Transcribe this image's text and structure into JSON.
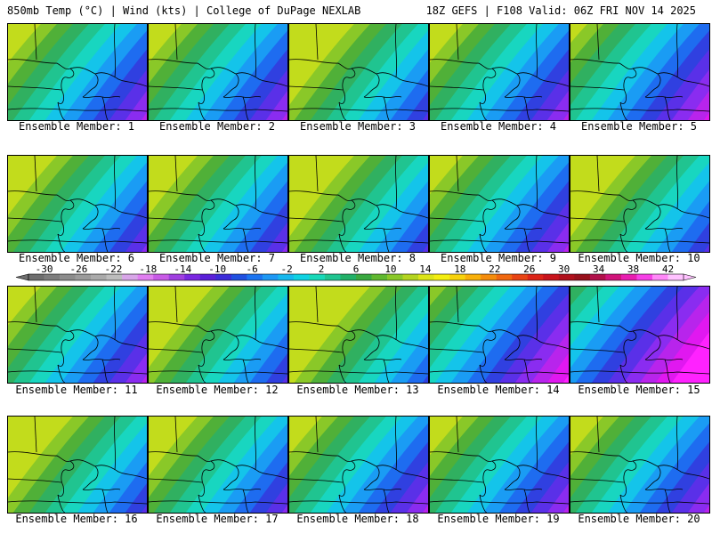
{
  "header": {
    "title": "850mb Temp (°C) | Wind (kts) | College of DuPage NEXLAB",
    "valid": "18Z GEFS | F108 Valid: 06Z FRI NOV 14 2025"
  },
  "members": [
    "Ensemble Member: 1",
    "Ensemble Member: 2",
    "Ensemble Member: 3",
    "Ensemble Member: 4",
    "Ensemble Member: 5",
    "Ensemble Member: 6",
    "Ensemble Member: 7",
    "Ensemble Member: 8",
    "Ensemble Member: 9",
    "Ensemble Member: 10",
    "Ensemble Member: 11",
    "Ensemble Member: 12",
    "Ensemble Member: 13",
    "Ensemble Member: 14",
    "Ensemble Member: 15",
    "Ensemble Member: 16",
    "Ensemble Member: 17",
    "Ensemble Member: 18",
    "Ensemble Member: 19",
    "Ensemble Member: 20"
  ],
  "colorbar": {
    "tick_labels": [
      "-30",
      "-26",
      "-22",
      "-18",
      "-14",
      "-10",
      "-6",
      "-2",
      "2",
      "6",
      "10",
      "14",
      "18",
      "22",
      "26",
      "30",
      "34",
      "38",
      "42"
    ],
    "colors": [
      "#6e6e6e",
      "#7d7d7d",
      "#8c8c8c",
      "#9b9b9b",
      "#aaaaaa",
      "#bdbdbd",
      "#d8a6e8",
      "#e07ef0",
      "#c85be6",
      "#a040e0",
      "#7a28e0",
      "#5a20d8",
      "#3c2cd8",
      "#2050e0",
      "#1c74f0",
      "#1e98f4",
      "#16b8ee",
      "#10d2e2",
      "#18d8b8",
      "#20c490",
      "#22b068",
      "#3aa840",
      "#60b830",
      "#8ac828",
      "#b4d420",
      "#dce418",
      "#f4ee10",
      "#f8d20c",
      "#f8b00a",
      "#f48c0c",
      "#f06810",
      "#e84414",
      "#dc2418",
      "#c8141c",
      "#b0101c",
      "#98101c",
      "#b0104a",
      "#d0147a",
      "#e81eb0",
      "#f640e6",
      "#ff88f8",
      "#ffc2ff"
    ]
  }
}
